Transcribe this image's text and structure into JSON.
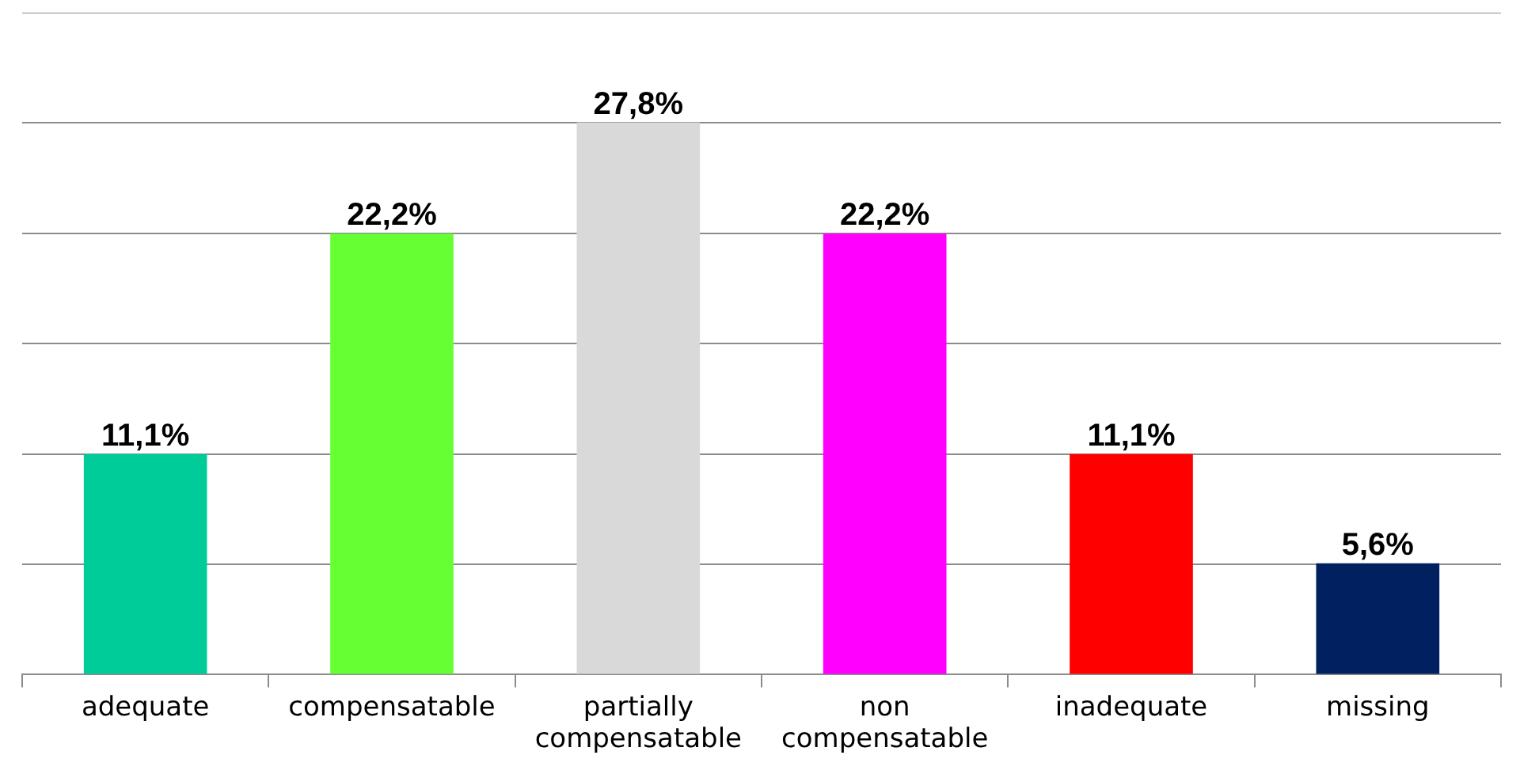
{
  "chart_data": {
    "type": "bar",
    "categories": [
      "adequate",
      "compensatable",
      "partially compensatable",
      "non compensatable",
      "inadequate",
      "missing"
    ],
    "values": [
      11.1,
      22.2,
      27.8,
      22.2,
      11.1,
      5.6
    ],
    "colors": [
      "#00cc99",
      "#66ff33",
      "#d9d9d9",
      "#ff00ff",
      "#ff0000",
      "#002060"
    ],
    "value_labels": [
      "11,1%",
      "22,2%",
      "27,8%",
      "22,2%",
      "11,1%",
      "5,6%"
    ],
    "ylim": [
      0,
      33.33
    ],
    "yticks": [
      {
        "value": 0,
        "label": null
      },
      {
        "value": 5.56,
        "label": null
      },
      {
        "value": 11.11,
        "label": null
      },
      {
        "value": 16.67,
        "label": null
      },
      {
        "value": 22.22,
        "label": null
      },
      {
        "value": 27.78,
        "label": null
      },
      {
        "value": 33.33,
        "label": null
      }
    ],
    "grid": "y",
    "tick_labels": "x",
    "legend": false
  }
}
